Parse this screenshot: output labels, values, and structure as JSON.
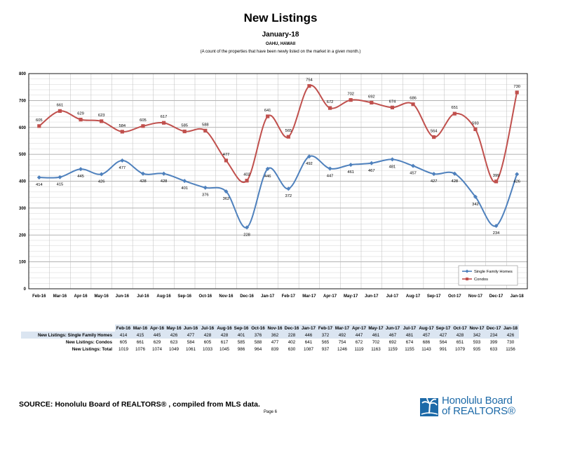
{
  "header": {
    "title": "New Listings",
    "subtitle": "January-18",
    "location": "OAHU, HAWAII",
    "description": "(A count of the properties that have been newly listed on the market in a given month.)"
  },
  "chart_data": {
    "type": "line",
    "categories": [
      "Feb-16",
      "Mar-16",
      "Apr-16",
      "May-16",
      "Jun-16",
      "Jul-16",
      "Aug-16",
      "Sep-16",
      "Oct-16",
      "Nov-16",
      "Dec-16",
      "Jan-17",
      "Feb-17",
      "Mar-17",
      "Apr-17",
      "May-17",
      "Jun-17",
      "Jul-17",
      "Aug-17",
      "Sep-17",
      "Oct-17",
      "Nov-17",
      "Dec-17",
      "Jan-18"
    ],
    "series": [
      {
        "name": "Single Family Homes",
        "color": "#4f81bd",
        "marker": "diamond",
        "values": [
          414,
          415,
          445,
          426,
          477,
          428,
          428,
          401,
          376,
          362,
          228,
          446,
          372,
          492,
          447,
          461,
          467,
          481,
          457,
          427,
          428,
          342,
          234,
          426
        ]
      },
      {
        "name": "Condos",
        "color": "#c0504d",
        "marker": "square",
        "values": [
          605,
          661,
          629,
          623,
          584,
          605,
          617,
          585,
          588,
          477,
          402,
          641,
          565,
          754,
          672,
          702,
          692,
          674,
          686,
          564,
          651,
          593,
          399,
          730
        ]
      }
    ],
    "ylim": [
      0,
      800
    ],
    "yticks": [
      0,
      100,
      200,
      300,
      400,
      500,
      600,
      700,
      800
    ],
    "grid": true,
    "legend_position": "bottom-right"
  },
  "table": {
    "rows": [
      {
        "label": "New Listings: Single Family Homes",
        "values": [
          414,
          415,
          445,
          426,
          477,
          428,
          428,
          401,
          376,
          362,
          228,
          446,
          372,
          492,
          447,
          461,
          467,
          481,
          457,
          427,
          428,
          342,
          234,
          426
        ]
      },
      {
        "label": "New Listings: Condos",
        "values": [
          605,
          661,
          629,
          623,
          584,
          605,
          617,
          585,
          588,
          477,
          402,
          641,
          565,
          754,
          672,
          702,
          692,
          674,
          686,
          564,
          651,
          593,
          399,
          730
        ]
      },
      {
        "label": "New Listings: Total",
        "values": [
          1019,
          1076,
          1074,
          1049,
          1061,
          1033,
          1045,
          986,
          964,
          839,
          630,
          1087,
          937,
          1246,
          1119,
          1163,
          1159,
          1155,
          1143,
          991,
          1079,
          935,
          633,
          1156
        ]
      }
    ]
  },
  "footer": {
    "source": "SOURCE:  Honolulu Board of REALTORS® , compiled from MLS data.",
    "page": "Page 6",
    "logo_line1": "Honolulu Board",
    "logo_line2": "of REALTORS®",
    "logo_icon": "palm-tree-icon",
    "logo_color": "#1d6aa8"
  }
}
